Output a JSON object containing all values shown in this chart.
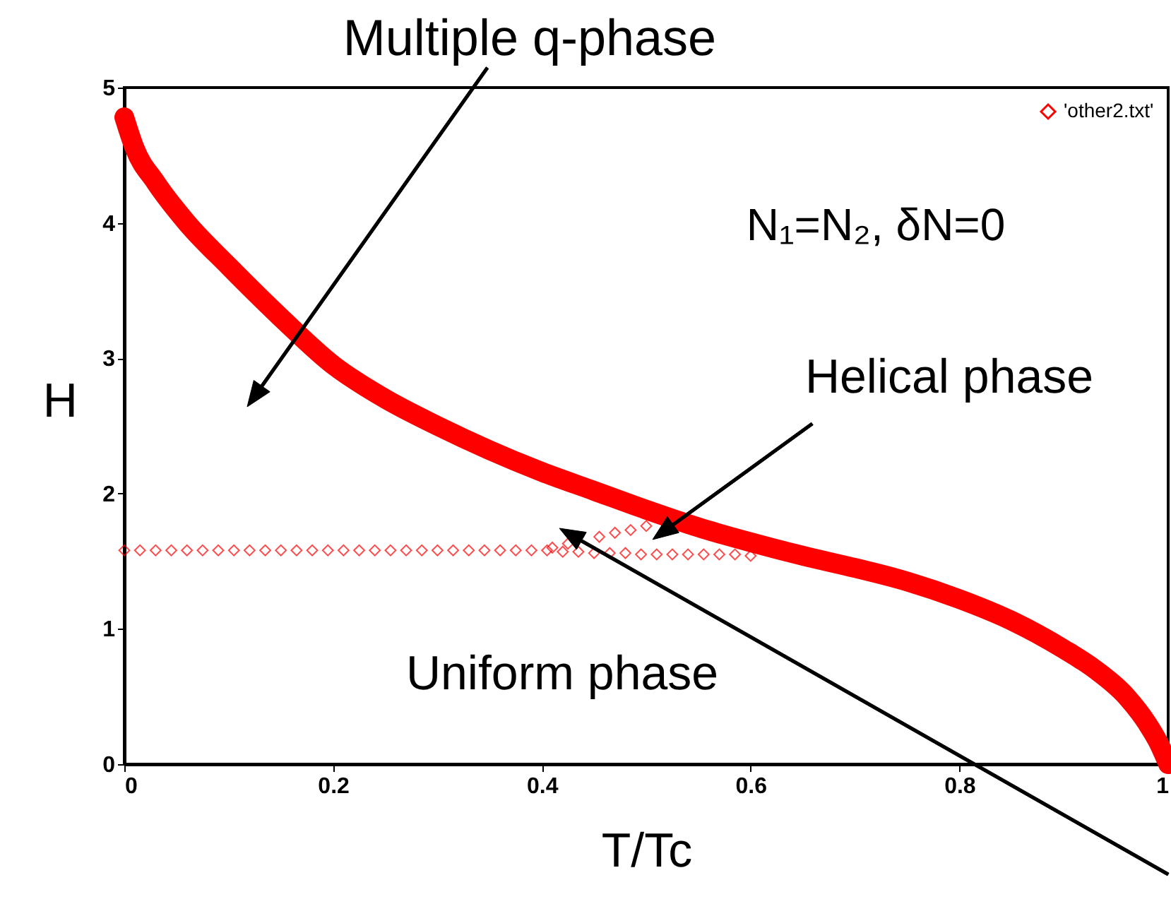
{
  "chart_data": {
    "type": "line",
    "xlabel": "T/Tc",
    "ylabel": "H",
    "xlim": [
      0,
      1
    ],
    "ylim": [
      0,
      5
    ],
    "xticks": [
      0,
      0.2,
      0.4,
      0.6,
      0.8,
      1
    ],
    "yticks": [
      0,
      1,
      2,
      3,
      4,
      5
    ],
    "grid": false,
    "legend": "top right",
    "annotations": [
      "Multiple q-phase",
      "N₁=N₂, δN=0",
      "Helical phase",
      "Uniform phase"
    ],
    "series": [
      {
        "color": "#ff0000",
        "marker": "none",
        "line_style": "solid",
        "x": [
          0,
          0.01,
          0.03,
          0.06,
          0.1,
          0.15,
          0.2,
          0.25,
          0.3,
          0.35,
          0.4,
          0.45,
          0.5,
          0.55,
          0.6,
          0.65,
          0.7,
          0.75,
          0.8,
          0.85,
          0.9,
          0.93,
          0.96,
          0.98,
          0.99,
          1
        ],
        "values": [
          4.78,
          4.55,
          4.3,
          4.0,
          3.68,
          3.3,
          2.95,
          2.7,
          2.5,
          2.32,
          2.16,
          2.02,
          1.88,
          1.75,
          1.64,
          1.54,
          1.45,
          1.35,
          1.22,
          1.06,
          0.85,
          0.7,
          0.5,
          0.3,
          0.17,
          0
        ]
      },
      {
        "type": "scatter",
        "name": "'other2.txt'",
        "color": "#ff0000",
        "marker": "diamond",
        "x": [
          0,
          0.015,
          0.03,
          0.045,
          0.06,
          0.075,
          0.09,
          0.105,
          0.12,
          0.135,
          0.15,
          0.165,
          0.18,
          0.195,
          0.21,
          0.225,
          0.24,
          0.255,
          0.27,
          0.285,
          0.3,
          0.315,
          0.33,
          0.345,
          0.36,
          0.375,
          0.39,
          0.405,
          0.42,
          0.435,
          0.45,
          0.465,
          0.48,
          0.495,
          0.51,
          0.525,
          0.54,
          0.555,
          0.57,
          0.585,
          0.6,
          0.41,
          0.425,
          0.455,
          0.47,
          0.485,
          0.5
        ],
        "values": [
          1.58,
          1.58,
          1.58,
          1.58,
          1.58,
          1.58,
          1.58,
          1.58,
          1.58,
          1.58,
          1.58,
          1.58,
          1.58,
          1.58,
          1.58,
          1.58,
          1.58,
          1.58,
          1.58,
          1.58,
          1.58,
          1.58,
          1.58,
          1.58,
          1.58,
          1.58,
          1.58,
          1.58,
          1.57,
          1.57,
          1.56,
          1.56,
          1.56,
          1.55,
          1.55,
          1.55,
          1.55,
          1.55,
          1.55,
          1.55,
          1.54,
          1.6,
          1.63,
          1.68,
          1.71,
          1.73,
          1.76
        ]
      }
    ]
  }
}
